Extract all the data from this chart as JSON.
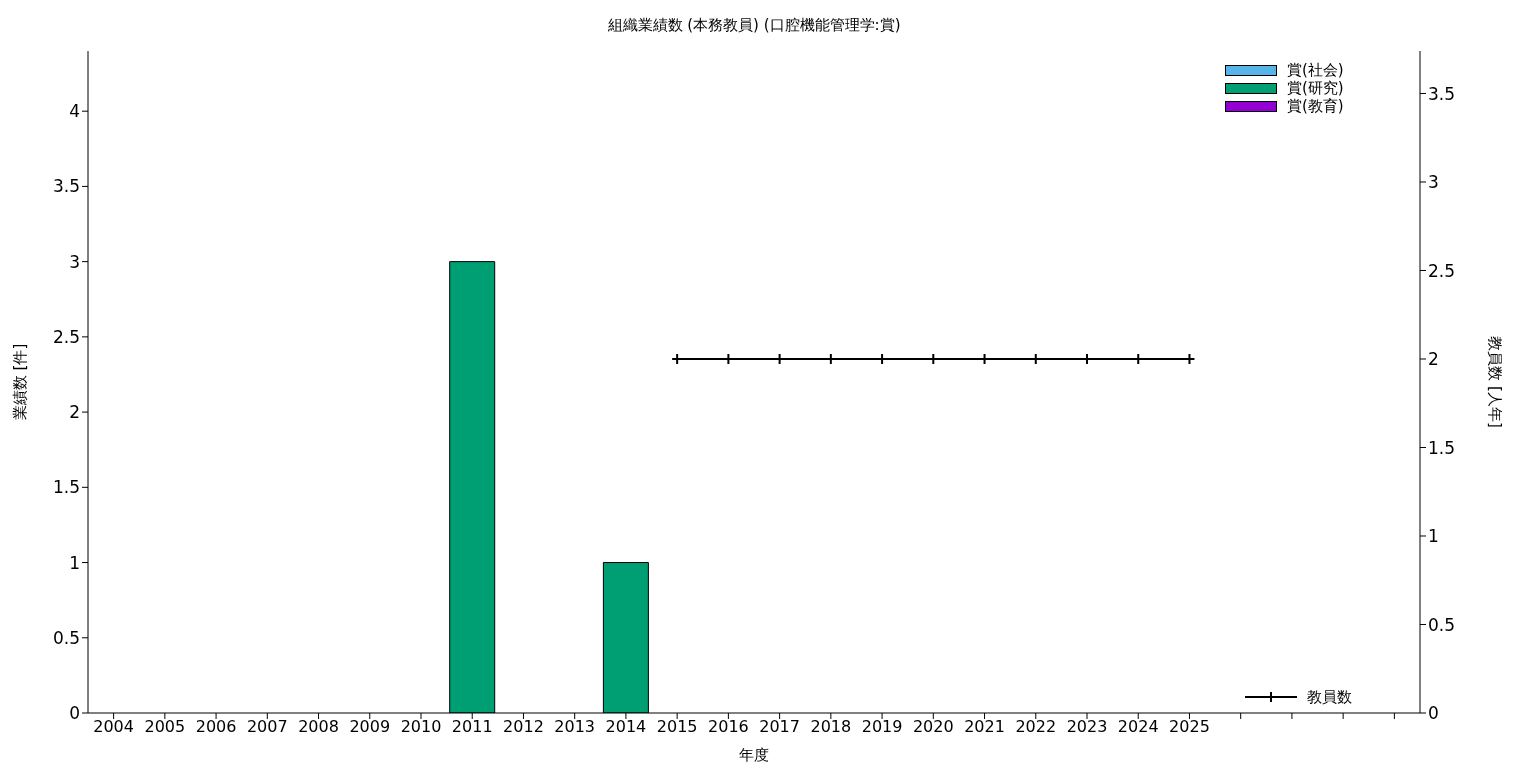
{
  "chart_data": {
    "type": "bar",
    "title": "組織業績数 (本務教員) (口腔機能管理学:賞)",
    "xlabel": "年度",
    "ylabel": "業績数 [件]",
    "y2label": "教員数 [人年]",
    "categories": [
      "2004",
      "2005",
      "2006",
      "2007",
      "2008",
      "2009",
      "2010",
      "2011",
      "2012",
      "2013",
      "2014",
      "2015",
      "2016",
      "2017",
      "2018",
      "2019",
      "2020",
      "2021",
      "2022",
      "2023",
      "2024",
      "2025",
      null,
      null,
      null,
      null
    ],
    "series": [
      {
        "name": "賞(社会)",
        "color": "#56b4e9",
        "values": [
          0,
          0,
          0,
          0,
          0,
          0,
          0,
          0,
          0,
          0,
          0,
          0,
          0,
          0,
          0,
          0,
          0,
          0,
          0,
          0,
          0,
          0,
          null,
          null,
          null,
          null
        ]
      },
      {
        "name": "賞(研究)",
        "color": "#009e73",
        "values": [
          0,
          0,
          0,
          0,
          0,
          0,
          0,
          3,
          0,
          0,
          1,
          0,
          0,
          0,
          0,
          0,
          0,
          0,
          0,
          0,
          0,
          0,
          null,
          null,
          null,
          null
        ]
      },
      {
        "name": "賞(教育)",
        "color": "#9400d3",
        "values": [
          0,
          0,
          0,
          0,
          0,
          0,
          0,
          0,
          0,
          0,
          0,
          0,
          0,
          0,
          0,
          0,
          0,
          0,
          0,
          0,
          0,
          0,
          null,
          null,
          null,
          null
        ]
      },
      {
        "name": "教員数",
        "type": "line",
        "axis": "y2",
        "color": "#000000",
        "marker": "cross",
        "values": [
          null,
          null,
          null,
          null,
          null,
          null,
          null,
          null,
          null,
          null,
          null,
          2,
          2,
          2,
          2,
          2,
          2,
          2,
          2,
          2,
          2,
          2,
          null,
          null,
          null,
          null
        ]
      }
    ],
    "stacked": true,
    "ylim": [
      0,
      4.4
    ],
    "yticks": [
      0,
      0.5,
      1,
      1.5,
      2,
      2.5,
      3,
      3.5,
      4
    ],
    "y2lim": [
      0,
      3.74
    ],
    "y2ticks": [
      0,
      0.5,
      1,
      1.5,
      2,
      2.5,
      3,
      3.5
    ],
    "grid": false,
    "legend": "right"
  }
}
